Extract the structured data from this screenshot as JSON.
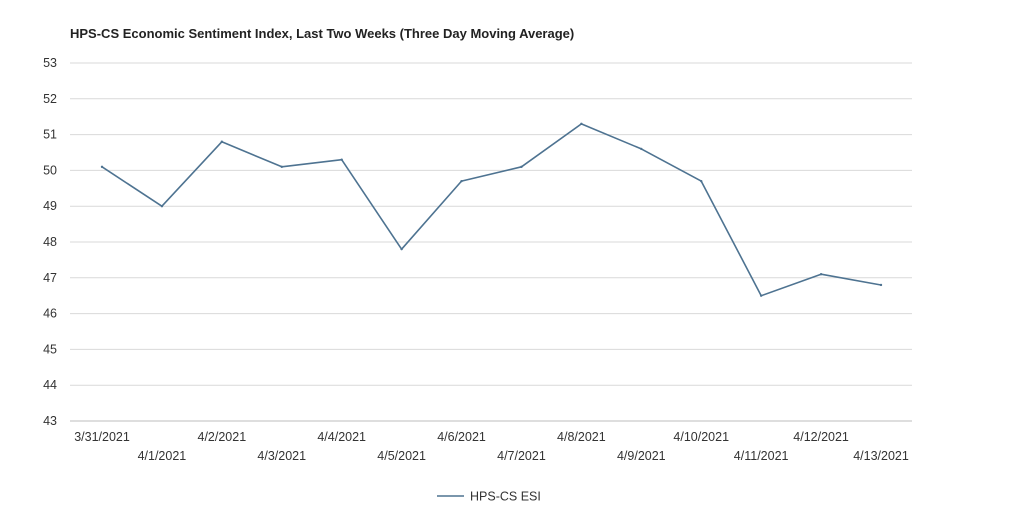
{
  "chart_data": {
    "type": "line",
    "title": "HPS-CS Economic Sentiment Index, Last Two Weeks (Three Day Moving Average)",
    "xlabel": "",
    "ylabel": "",
    "categories": [
      "3/31/2021",
      "4/1/2021",
      "4/2/2021",
      "4/3/2021",
      "4/4/2021",
      "4/5/2021",
      "4/6/2021",
      "4/7/2021",
      "4/8/2021",
      "4/9/2021",
      "4/10/2021",
      "4/11/2021",
      "4/12/2021",
      "4/13/2021"
    ],
    "series": [
      {
        "name": "HPS-CS ESI",
        "color": "#4e7391",
        "values": [
          50.1,
          49.0,
          50.8,
          50.1,
          50.3,
          47.8,
          49.7,
          50.1,
          51.3,
          50.6,
          49.7,
          46.5,
          47.1,
          46.8
        ]
      }
    ],
    "ylim": [
      43,
      53
    ],
    "yticks": [
      "43",
      "44",
      "45",
      "46",
      "47",
      "48",
      "49",
      "50",
      "51",
      "52",
      "53"
    ],
    "grid": true,
    "legend": "bottom-center"
  }
}
